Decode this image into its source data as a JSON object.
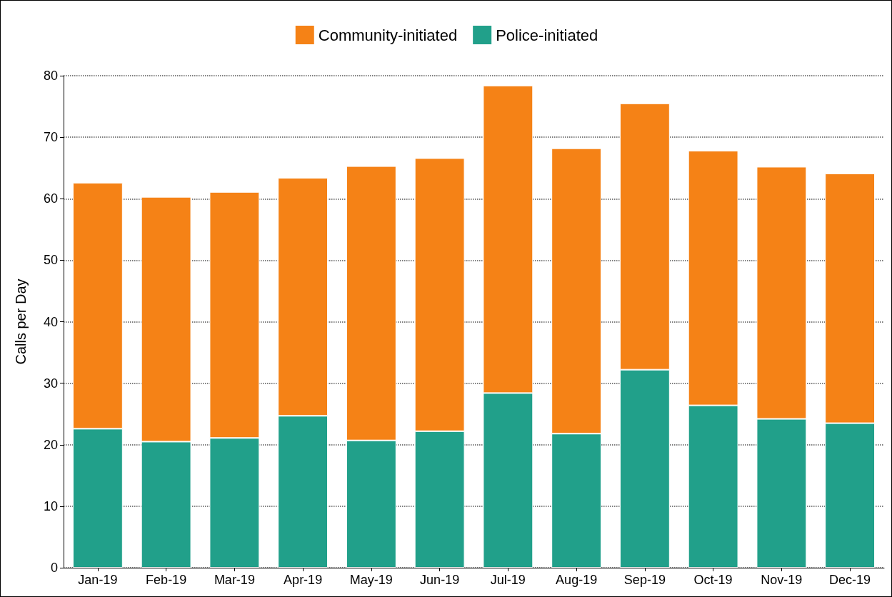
{
  "chart_data": {
    "type": "bar",
    "stacked": true,
    "ylabel": "Calls per Day",
    "categories": [
      "Jan-19",
      "Feb-19",
      "Mar-19",
      "Apr-19",
      "May-19",
      "Jun-19",
      "Jul-19",
      "Aug-19",
      "Sep-19",
      "Oct-19",
      "Nov-19",
      "Dec-19"
    ],
    "series": [
      {
        "name": "Police-initiated",
        "color": "#21a08a",
        "values": [
          22.6,
          20.5,
          21.1,
          24.7,
          20.7,
          22.2,
          28.4,
          21.8,
          32.2,
          26.4,
          24.2,
          23.5
        ]
      },
      {
        "name": "Community-initiated",
        "color": "#f58216",
        "values": [
          40.0,
          39.8,
          40.0,
          38.7,
          44.6,
          44.4,
          50.0,
          46.4,
          43.3,
          41.4,
          41.0,
          40.6
        ]
      }
    ],
    "ylim": [
      0,
      80
    ],
    "yticks": [
      0,
      10,
      20,
      30,
      40,
      50,
      60,
      70,
      80
    ],
    "grid": "y",
    "legend": "top"
  }
}
